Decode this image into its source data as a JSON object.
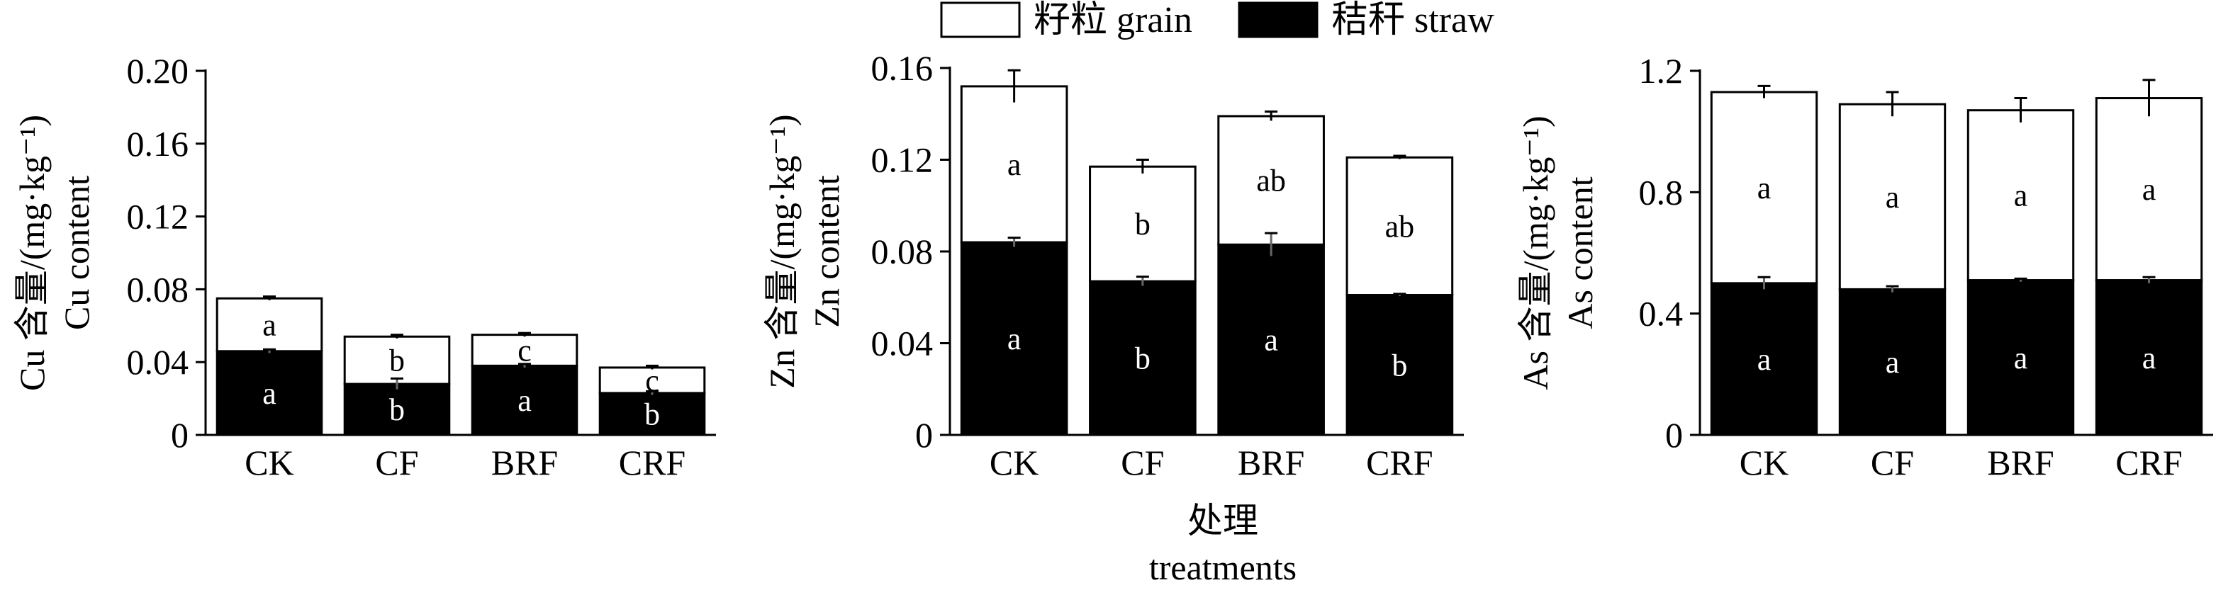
{
  "legend": {
    "items": [
      {
        "label": "籽粒 grain",
        "color": "#ffffff"
      },
      {
        "label": "秸秆 straw",
        "color": "#000000"
      }
    ],
    "placement": "top-center"
  },
  "shared_xlabel": {
    "line1": "处理",
    "line2": "treatments"
  },
  "chart_data": [
    {
      "type": "bar",
      "stacked": true,
      "categories": [
        "CK",
        "CF",
        "BRF",
        "CRF"
      ],
      "ylabel_line1": "Cu 含量/(mg·kg⁻¹)",
      "ylabel_line2": "Cu content",
      "ylim": [
        0,
        0.2
      ],
      "yticks": [
        0,
        0.04,
        0.08,
        0.12,
        0.16,
        0.2
      ],
      "ytick_labels": [
        "0",
        "0.04",
        "0.08",
        "0.12",
        "0.16",
        "0.20"
      ],
      "series": [
        {
          "name": "秸秆 straw",
          "color": "#000000",
          "values": [
            0.046,
            0.028,
            0.038,
            0.023
          ],
          "errors": [
            0.001,
            0.003,
            0.001,
            0.001
          ],
          "letters": [
            "a",
            "b",
            "a",
            "b"
          ]
        },
        {
          "name": "籽粒 grain",
          "color": "#ffffff",
          "values": [
            0.029,
            0.026,
            0.017,
            0.014
          ],
          "errors": [
            0.001,
            0.001,
            0.001,
            0.001
          ],
          "letters": [
            "a",
            "b",
            "c",
            "c"
          ]
        }
      ]
    },
    {
      "type": "bar",
      "stacked": true,
      "categories": [
        "CK",
        "CF",
        "BRF",
        "CRF"
      ],
      "ylabel_line1": "Zn 含量/(mg·kg⁻¹)",
      "ylabel_line2": "Zn content",
      "ylim": [
        0,
        0.16
      ],
      "yticks": [
        0,
        0.04,
        0.08,
        0.12,
        0.16
      ],
      "ytick_labels": [
        "0",
        "0.04",
        "0.08",
        "0.12",
        "0.16"
      ],
      "series": [
        {
          "name": "秸秆 straw",
          "color": "#000000",
          "values": [
            0.084,
            0.067,
            0.083,
            0.061
          ],
          "errors": [
            0.002,
            0.002,
            0.005,
            0.0005
          ],
          "letters": [
            "a",
            "b",
            "a",
            "b"
          ]
        },
        {
          "name": "籽粒 grain",
          "color": "#ffffff",
          "values": [
            0.068,
            0.05,
            0.056,
            0.06
          ],
          "errors": [
            0.007,
            0.003,
            0.002,
            0.0007
          ],
          "letters": [
            "a",
            "b",
            "ab",
            "ab"
          ]
        }
      ]
    },
    {
      "type": "bar",
      "stacked": true,
      "categories": [
        "CK",
        "CF",
        "BRF",
        "CRF"
      ],
      "ylabel_line1": "As 含量/(mg·kg⁻¹)",
      "ylabel_line2": "As content",
      "ylim": [
        0,
        1.2
      ],
      "yticks": [
        0,
        0.4,
        0.8,
        1.2
      ],
      "ytick_labels": [
        "0",
        "0.4",
        "0.8",
        "1.2"
      ],
      "series": [
        {
          "name": "秸秆 straw",
          "color": "#000000",
          "values": [
            0.5,
            0.48,
            0.51,
            0.51
          ],
          "errors": [
            0.02,
            0.01,
            0.005,
            0.01
          ],
          "letters": [
            "a",
            "a",
            "a",
            "a"
          ]
        },
        {
          "name": "籽粒 grain",
          "color": "#ffffff",
          "values": [
            0.63,
            0.61,
            0.56,
            0.6
          ],
          "errors": [
            0.02,
            0.04,
            0.04,
            0.06
          ],
          "letters": [
            "a",
            "a",
            "a",
            "a"
          ]
        }
      ]
    }
  ]
}
